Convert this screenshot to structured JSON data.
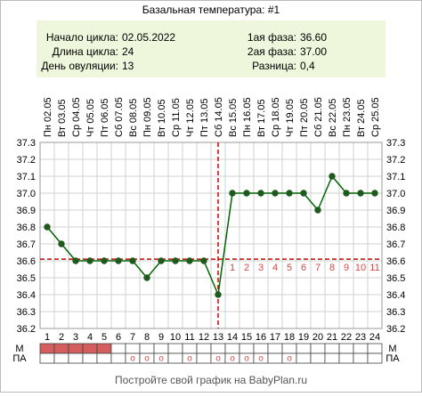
{
  "chart_data": {
    "type": "line",
    "title": "Базальная температура: #1",
    "info": {
      "left": [
        {
          "label": "Начало цикла:",
          "value": "02.05.2022"
        },
        {
          "label": "Длина цикла:",
          "value": "24"
        },
        {
          "label": "День овуляции:",
          "value": "13"
        }
      ],
      "right": [
        {
          "label": "1ая фаза:",
          "value": "36.60"
        },
        {
          "label": "2ая фаза:",
          "value": "37.00"
        },
        {
          "label": "Разница:",
          "value": "0,4"
        }
      ]
    },
    "dates": [
      "Пн 02.05",
      "Вт 03.05",
      "Ср 04.05",
      "Чт 05.05",
      "Пт 06.05",
      "Сб 07.05",
      "Вс 08.05",
      "Пн 09.05",
      "Вт 10.05",
      "Ср 11.05",
      "Чт 12.05",
      "Пт 13.05",
      "Сб 14.05",
      "Вс 15.05",
      "Пн 16.05",
      "Вт 17.05",
      "Ср 18.05",
      "Чт 19.05",
      "Пт 20.05",
      "Сб 21.05",
      "Вс 22.05",
      "Пн 23.05",
      "Вт 24.05",
      "Ср 25.05"
    ],
    "days": [
      1,
      2,
      3,
      4,
      5,
      6,
      7,
      8,
      9,
      10,
      11,
      12,
      13,
      14,
      15,
      16,
      17,
      18,
      19,
      20,
      21,
      22,
      23,
      24
    ],
    "values": [
      36.8,
      36.7,
      36.6,
      36.6,
      36.6,
      36.6,
      36.6,
      36.5,
      36.6,
      36.6,
      36.6,
      36.6,
      36.4,
      37.0,
      37.0,
      37.0,
      37.0,
      37.0,
      37.0,
      36.9,
      37.1,
      37.0,
      37.0,
      37.0
    ],
    "ylim": [
      36.2,
      37.3
    ],
    "yticks": [
      "36.2",
      "36.3",
      "36.4",
      "36.5",
      "36.6",
      "36.7",
      "36.8",
      "36.9",
      "37.0",
      "37.1",
      "37.2",
      "37.3"
    ],
    "coverline": 36.61,
    "ovulation_day": 13,
    "phase2_day_labels": [
      "1",
      "2",
      "3",
      "4",
      "5",
      "6",
      "7",
      "8",
      "9",
      "10",
      "11"
    ],
    "phase2_label_start_day": 14,
    "bottom_rows": {
      "m_label": "М",
      "pa_label": "ПА",
      "m_days": [
        1,
        2,
        3,
        4,
        5
      ],
      "pa_days": [
        7,
        8,
        9,
        11,
        13,
        14,
        15,
        16,
        18
      ],
      "pa_mark": "o"
    },
    "grid": true,
    "colors": {
      "line": "#006400",
      "point": "#1e5a1e",
      "guide": "#d40000",
      "grid": "#d0d0d0",
      "info_bg": "#eef6dc",
      "m_fill": "#d55d5d",
      "pa_mark": "#d44848",
      "phase_label": "#d44848"
    }
  },
  "footer": "Постройте свой график на BabyPlan.ru"
}
